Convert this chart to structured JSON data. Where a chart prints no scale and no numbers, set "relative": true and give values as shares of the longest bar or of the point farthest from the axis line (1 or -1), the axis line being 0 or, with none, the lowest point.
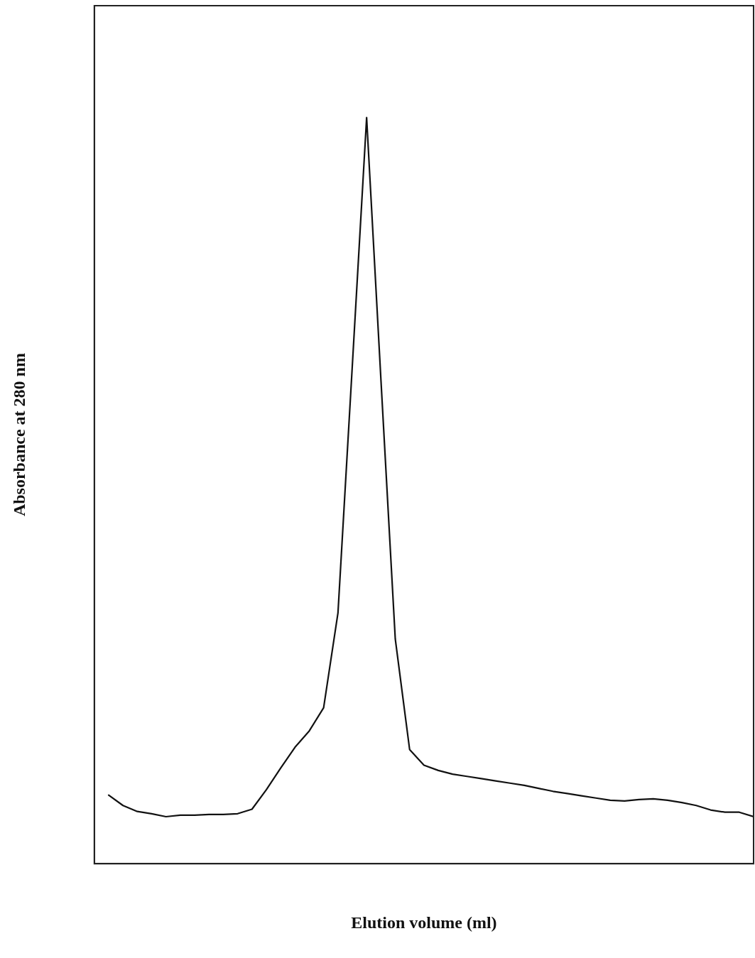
{
  "chart_data": {
    "type": "line",
    "relative": true,
    "xlabel": "Elution volume (ml)",
    "ylabel": "Absorbance at 280 nm",
    "categories": [
      null,
      null,
      null,
      null,
      null,
      null,
      null,
      null,
      null,
      null,
      null,
      null,
      null,
      null,
      null,
      null,
      null,
      null,
      null,
      null,
      null,
      null,
      null,
      null,
      null,
      null,
      null,
      null,
      null,
      null,
      null,
      null,
      null,
      null,
      null,
      null,
      null,
      null,
      null,
      null,
      null,
      null,
      null,
      null,
      null,
      null
    ],
    "series": [
      {
        "color": "#111111",
        "values": [
          0.092,
          0.078,
          0.07,
          0.067,
          0.063,
          0.065,
          0.065,
          0.066,
          0.066,
          0.067,
          0.073,
          0.099,
          0.128,
          0.156,
          0.178,
          0.209,
          0.336,
          0.667,
          1,
          0.648,
          0.301,
          0.153,
          0.132,
          0.125,
          0.12,
          0.117,
          0.114,
          0.111,
          0.108,
          0.105,
          0.101,
          0.097,
          0.094,
          0.091,
          0.088,
          0.085,
          0.084,
          0.086,
          0.087,
          0.085,
          0.082,
          0.078,
          0.072,
          0.069,
          0.069,
          0.063
        ]
      }
    ],
    "grid": false,
    "legend": false,
    "marker": "none",
    "line_style": "solid",
    "tick_labels": false
  }
}
